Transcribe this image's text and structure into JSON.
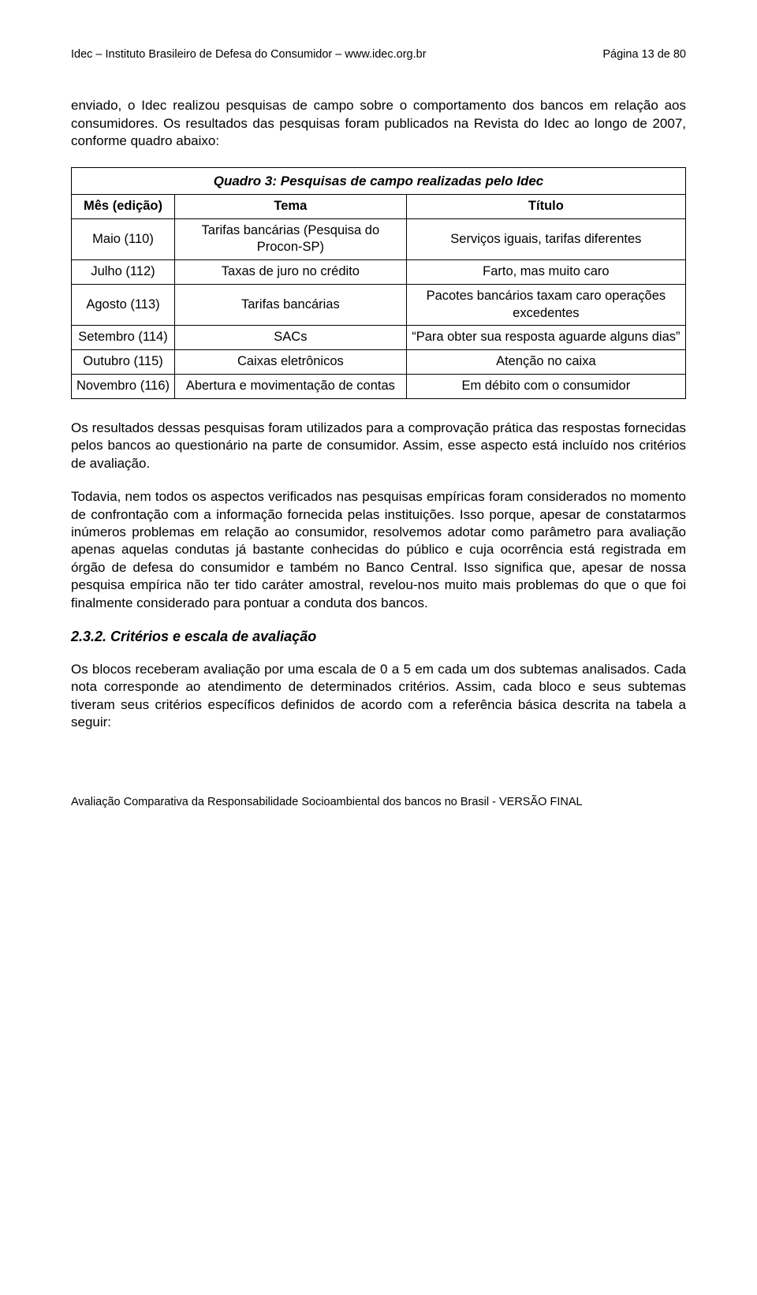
{
  "header": {
    "left": "Idec – Instituto Brasileiro de Defesa do Consumidor – www.idec.org.br",
    "right": "Página 13 de 80"
  },
  "intro": "enviado, o Idec realizou pesquisas de campo sobre o comportamento dos bancos em relação aos consumidores. Os resultados das pesquisas foram publicados na Revista do Idec ao longo de 2007, conforme quadro abaixo:",
  "table": {
    "caption": "Quadro 3: Pesquisas de campo realizadas pelo Idec",
    "headers": {
      "mes": "Mês (edição)",
      "tema": "Tema",
      "titulo": "Título"
    },
    "rows": [
      {
        "mes": "Maio (110)",
        "tema": "Tarifas bancárias (Pesquisa do Procon-SP)",
        "titulo": "Serviços iguais, tarifas diferentes"
      },
      {
        "mes": "Julho (112)",
        "tema": "Taxas de juro no crédito",
        "titulo": "Farto, mas muito caro"
      },
      {
        "mes": "Agosto (113)",
        "tema": "Tarifas bancárias",
        "titulo": "Pacotes bancários taxam caro operações excedentes"
      },
      {
        "mes": "Setembro (114)",
        "tema": "SACs",
        "titulo": "“Para obter sua resposta aguarde alguns dias”"
      },
      {
        "mes": "Outubro (115)",
        "tema": "Caixas eletrônicos",
        "titulo": "Atenção no caixa"
      },
      {
        "mes": "Novembro (116)",
        "tema": "Abertura e movimentação de contas",
        "titulo": "Em débito com o consumidor"
      }
    ]
  },
  "paragraphs": {
    "p1": "Os resultados dessas pesquisas foram utilizados para a comprovação prática das respostas fornecidas pelos bancos ao questionário na parte de consumidor. Assim, esse aspecto está incluído nos critérios de avaliação.",
    "p2": "Todavia, nem todos os aspectos verificados nas pesquisas empíricas foram considerados no momento de confrontação com a informação fornecida pelas instituições. Isso porque, apesar de constatarmos inúmeros problemas em relação ao consumidor, resolvemos adotar como parâmetro para avaliação apenas aquelas condutas já bastante conhecidas do público e cuja ocorrência está registrada em órgão de defesa do consumidor e também no Banco Central. Isso significa que, apesar de nossa pesquisa empírica não ter tido caráter amostral, revelou-nos muito mais problemas do que o que foi finalmente considerado para pontuar a conduta dos bancos."
  },
  "section": {
    "heading": "2.3.2. Critérios e escala de avaliação",
    "p3": "Os blocos receberam avaliação por uma escala de 0 a 5 em cada um dos subtemas analisados. Cada nota corresponde ao atendimento de determinados critérios. Assim, cada bloco e seus subtemas tiveram seus critérios específicos definidos de acordo com a referência básica descrita na tabela a seguir:"
  },
  "footer": "Avaliação Comparativa da Responsabilidade Socioambiental dos bancos no Brasil - VERSÃO FINAL"
}
